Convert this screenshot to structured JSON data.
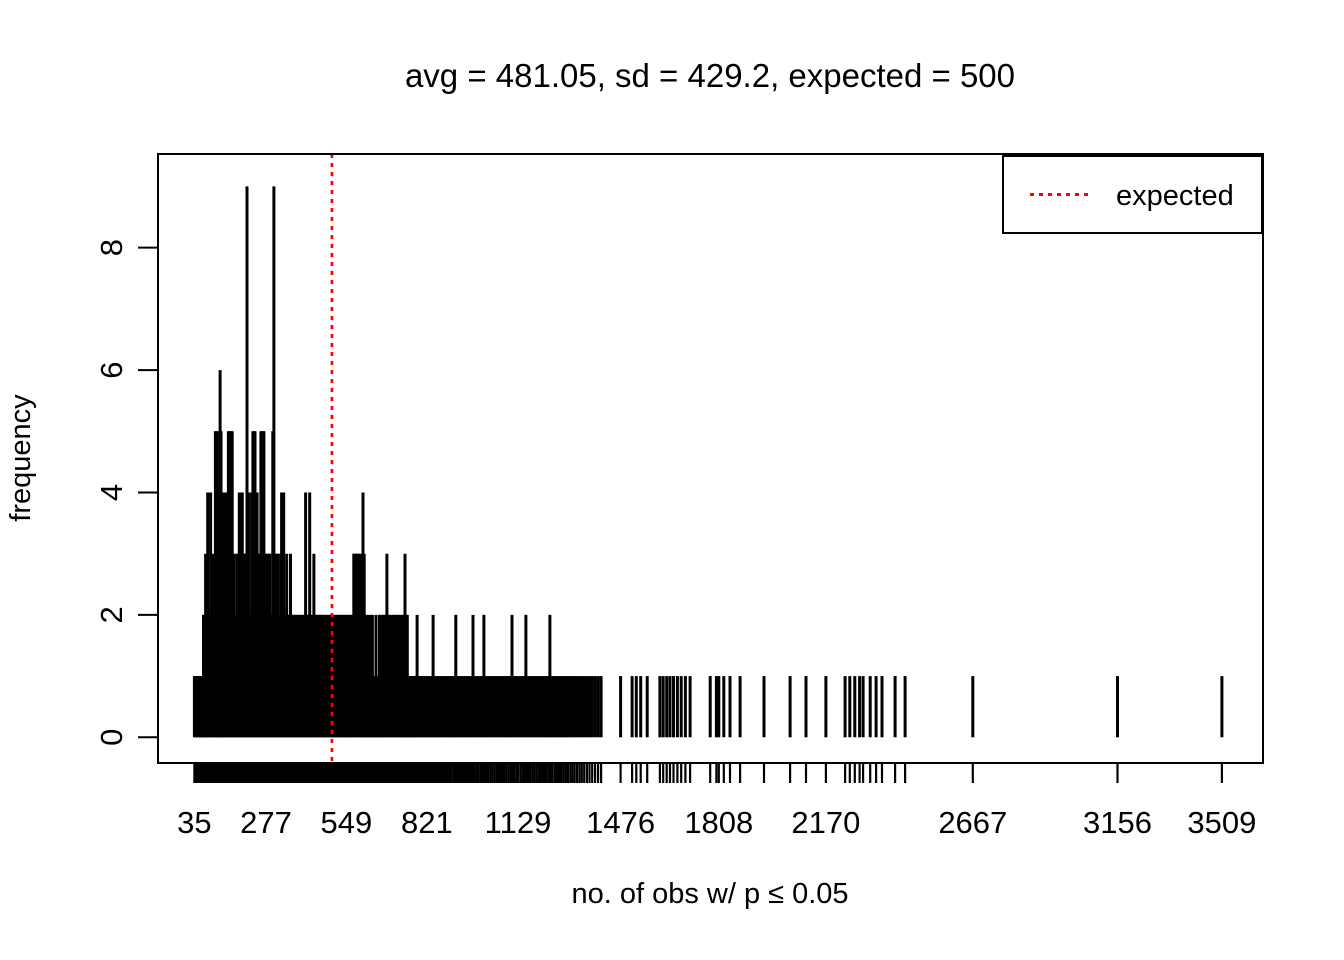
{
  "figure": {
    "background": "#ffffff",
    "stats": {
      "avg": 481.05,
      "sd": 429.2,
      "expected": 500
    }
  },
  "chart_data": {
    "type": "bar",
    "subtype": "frequency-spike-plot",
    "title": "avg = 481.05, sd = 429.2, expected = 500",
    "xlabel": "no. of obs w/ p ≤ 0.05",
    "ylabel": "frequency",
    "bar_color": "#000000",
    "axis_color": "#000000",
    "grid": false,
    "xlim": [
      -88,
      3648
    ],
    "ylim": [
      -0.42,
      9.53
    ],
    "y_ticks": [
      0,
      2,
      4,
      6,
      8
    ],
    "x_tick_labels": [
      35,
      277,
      549,
      821,
      1129,
      1476,
      1808,
      2170,
      2667,
      3156,
      3509
    ],
    "rug_at_every_value": true,
    "expected_line": {
      "value": 500,
      "color": "#ff0000",
      "line_style": "dotted",
      "label": "expected"
    },
    "legend": {
      "position": "top-right",
      "entries": [
        {
          "label": "expected",
          "color": "#ff0000",
          "line_style": "dotted"
        }
      ]
    },
    "points": [
      [
        35,
        1
      ],
      [
        39,
        1
      ],
      [
        43,
        1
      ],
      [
        46,
        1
      ],
      [
        50,
        1
      ],
      [
        53,
        1
      ],
      [
        56,
        1
      ],
      [
        60,
        1
      ],
      [
        63,
        1
      ],
      [
        66,
        2
      ],
      [
        70,
        2
      ],
      [
        73,
        3
      ],
      [
        76,
        2
      ],
      [
        80,
        4
      ],
      [
        83,
        2
      ],
      [
        86,
        2
      ],
      [
        90,
        4
      ],
      [
        93,
        3
      ],
      [
        96,
        2
      ],
      [
        100,
        2
      ],
      [
        103,
        3
      ],
      [
        106,
        5
      ],
      [
        109,
        5
      ],
      [
        113,
        5
      ],
      [
        116,
        2
      ],
      [
        119,
        3
      ],
      [
        122,
        6
      ],
      [
        125,
        5
      ],
      [
        128,
        2
      ],
      [
        131,
        2
      ],
      [
        134,
        4
      ],
      [
        137,
        4
      ],
      [
        141,
        2
      ],
      [
        144,
        4
      ],
      [
        147,
        3
      ],
      [
        150,
        5
      ],
      [
        153,
        5
      ],
      [
        157,
        5
      ],
      [
        160,
        5
      ],
      [
        163,
        5
      ],
      [
        167,
        2
      ],
      [
        170,
        3
      ],
      [
        173,
        2
      ],
      [
        177,
        2
      ],
      [
        180,
        3
      ],
      [
        183,
        3
      ],
      [
        187,
        4
      ],
      [
        190,
        4
      ],
      [
        193,
        4
      ],
      [
        197,
        4
      ],
      [
        200,
        3
      ],
      [
        204,
        3
      ],
      [
        207,
        3
      ],
      [
        210,
        3
      ],
      [
        213,
        9
      ],
      [
        217,
        3
      ],
      [
        220,
        4
      ],
      [
        223,
        2
      ],
      [
        227,
        2
      ],
      [
        230,
        4
      ],
      [
        233,
        5
      ],
      [
        237,
        5
      ],
      [
        240,
        5
      ],
      [
        243,
        4
      ],
      [
        247,
        4
      ],
      [
        250,
        3
      ],
      [
        253,
        2
      ],
      [
        257,
        3
      ],
      [
        260,
        5
      ],
      [
        263,
        5
      ],
      [
        267,
        5
      ],
      [
        270,
        5
      ],
      [
        273,
        3
      ],
      [
        277,
        3
      ],
      [
        280,
        3
      ],
      [
        283,
        2
      ],
      [
        287,
        3
      ],
      [
        290,
        3
      ],
      [
        293,
        2
      ],
      [
        297,
        2
      ],
      [
        300,
        5
      ],
      [
        304,
        9
      ],
      [
        307,
        3
      ],
      [
        310,
        2
      ],
      [
        314,
        3
      ],
      [
        317,
        3
      ],
      [
        320,
        2
      ],
      [
        324,
        2
      ],
      [
        327,
        3
      ],
      [
        330,
        4
      ],
      [
        334,
        4
      ],
      [
        337,
        4
      ],
      [
        340,
        2
      ],
      [
        344,
        2
      ],
      [
        347,
        3
      ],
      [
        350,
        2
      ],
      [
        354,
        2
      ],
      [
        357,
        2
      ],
      [
        360,
        3
      ],
      [
        364,
        2
      ],
      [
        367,
        2
      ],
      [
        371,
        2
      ],
      [
        374,
        2
      ],
      [
        378,
        2
      ],
      [
        381,
        1
      ],
      [
        385,
        2
      ],
      [
        389,
        2
      ],
      [
        392,
        1
      ],
      [
        396,
        2
      ],
      [
        400,
        2
      ],
      [
        403,
        1
      ],
      [
        407,
        2
      ],
      [
        411,
        4
      ],
      [
        414,
        2
      ],
      [
        418,
        2
      ],
      [
        421,
        1
      ],
      [
        425,
        4
      ],
      [
        428,
        2
      ],
      [
        432,
        2
      ],
      [
        436,
        2
      ],
      [
        439,
        3
      ],
      [
        443,
        2
      ],
      [
        447,
        2
      ],
      [
        450,
        1
      ],
      [
        454,
        2
      ],
      [
        458,
        2
      ],
      [
        461,
        2
      ],
      [
        465,
        1
      ],
      [
        469,
        2
      ],
      [
        472,
        2
      ],
      [
        476,
        1
      ],
      [
        480,
        2
      ],
      [
        484,
        2
      ],
      [
        487,
        1
      ],
      [
        491,
        2
      ],
      [
        495,
        2
      ],
      [
        498,
        2
      ],
      [
        502,
        2
      ],
      [
        506,
        2
      ],
      [
        510,
        1
      ],
      [
        513,
        2
      ],
      [
        517,
        2
      ],
      [
        521,
        1
      ],
      [
        525,
        2
      ],
      [
        528,
        2
      ],
      [
        532,
        1
      ],
      [
        536,
        2
      ],
      [
        540,
        2
      ],
      [
        543,
        1
      ],
      [
        549,
        2
      ],
      [
        551,
        2
      ],
      [
        555,
        1
      ],
      [
        558,
        2
      ],
      [
        562,
        2
      ],
      [
        566,
        1
      ],
      [
        570,
        2
      ],
      [
        574,
        3
      ],
      [
        578,
        3
      ],
      [
        582,
        3
      ],
      [
        586,
        3
      ],
      [
        590,
        3
      ],
      [
        594,
        2
      ],
      [
        598,
        3
      ],
      [
        602,
        3
      ],
      [
        605,
        4
      ],
      [
        609,
        3
      ],
      [
        613,
        2
      ],
      [
        617,
        1
      ],
      [
        621,
        2
      ],
      [
        625,
        1
      ],
      [
        629,
        2
      ],
      [
        633,
        1
      ],
      [
        637,
        2
      ],
      [
        641,
        1
      ],
      [
        645,
        1
      ],
      [
        649,
        2
      ],
      [
        653,
        1
      ],
      [
        657,
        1
      ],
      [
        661,
        2
      ],
      [
        665,
        2
      ],
      [
        669,
        1
      ],
      [
        673,
        2
      ],
      [
        677,
        2
      ],
      [
        681,
        2
      ],
      [
        686,
        3
      ],
      [
        690,
        2
      ],
      [
        694,
        2
      ],
      [
        698,
        1
      ],
      [
        702,
        2
      ],
      [
        706,
        2
      ],
      [
        710,
        1
      ],
      [
        714,
        2
      ],
      [
        719,
        2
      ],
      [
        723,
        1
      ],
      [
        727,
        2
      ],
      [
        731,
        2
      ],
      [
        735,
        1
      ],
      [
        739,
        2
      ],
      [
        743,
        2
      ],
      [
        747,
        3
      ],
      [
        751,
        2
      ],
      [
        755,
        2
      ],
      [
        759,
        1
      ],
      [
        763,
        1
      ],
      [
        768,
        1
      ],
      [
        773,
        1
      ],
      [
        778,
        1
      ],
      [
        783,
        1
      ],
      [
        788,
        2
      ],
      [
        793,
        1
      ],
      [
        798,
        1
      ],
      [
        804,
        1
      ],
      [
        809,
        1
      ],
      [
        815,
        1
      ],
      [
        821,
        1
      ],
      [
        827,
        1
      ],
      [
        833,
        1
      ],
      [
        839,
        1
      ],
      [
        842,
        2
      ],
      [
        848,
        1
      ],
      [
        854,
        1
      ],
      [
        860,
        1
      ],
      [
        866,
        1
      ],
      [
        872,
        1
      ],
      [
        879,
        1
      ],
      [
        885,
        1
      ],
      [
        891,
        1
      ],
      [
        897,
        1
      ],
      [
        903,
        1
      ],
      [
        910,
        1
      ],
      [
        916,
        1
      ],
      [
        919,
        2
      ],
      [
        925,
        1
      ],
      [
        931,
        1
      ],
      [
        938,
        1
      ],
      [
        944,
        1
      ],
      [
        950,
        1
      ],
      [
        957,
        1
      ],
      [
        963,
        1
      ],
      [
        970,
        1
      ],
      [
        977,
        2
      ],
      [
        983,
        1
      ],
      [
        990,
        1
      ],
      [
        996,
        1
      ],
      [
        1003,
        1
      ],
      [
        1009,
        1
      ],
      [
        1014,
        2
      ],
      [
        1021,
        1
      ],
      [
        1028,
        1
      ],
      [
        1035,
        1
      ],
      [
        1042,
        1
      ],
      [
        1049,
        1
      ],
      [
        1056,
        1
      ],
      [
        1063,
        1
      ],
      [
        1070,
        1
      ],
      [
        1077,
        1
      ],
      [
        1084,
        1
      ],
      [
        1091,
        1
      ],
      [
        1098,
        1
      ],
      [
        1105,
        1
      ],
      [
        1109,
        2
      ],
      [
        1116,
        1
      ],
      [
        1123,
        1
      ],
      [
        1129,
        1
      ],
      [
        1137,
        1
      ],
      [
        1144,
        1
      ],
      [
        1151,
        1
      ],
      [
        1156,
        2
      ],
      [
        1163,
        1
      ],
      [
        1170,
        1
      ],
      [
        1177,
        1
      ],
      [
        1184,
        1
      ],
      [
        1191,
        1
      ],
      [
        1198,
        1
      ],
      [
        1205,
        1
      ],
      [
        1212,
        1
      ],
      [
        1219,
        1
      ],
      [
        1226,
        1
      ],
      [
        1233,
        1
      ],
      [
        1237,
        2
      ],
      [
        1244,
        1
      ],
      [
        1252,
        1
      ],
      [
        1258,
        1
      ],
      [
        1264,
        1
      ],
      [
        1271,
        1
      ],
      [
        1277,
        1
      ],
      [
        1284,
        1
      ],
      [
        1291,
        1
      ],
      [
        1298,
        1
      ],
      [
        1306,
        1
      ],
      [
        1313,
        1
      ],
      [
        1321,
        1
      ],
      [
        1329,
        1
      ],
      [
        1337,
        1
      ],
      [
        1345,
        1
      ],
      [
        1353,
        1
      ],
      [
        1362,
        1
      ],
      [
        1371,
        1
      ],
      [
        1380,
        1
      ],
      [
        1390,
        1
      ],
      [
        1400,
        1
      ],
      [
        1410,
        1
      ],
      [
        1476,
        1
      ],
      [
        1515,
        1
      ],
      [
        1529,
        1
      ],
      [
        1544,
        1
      ],
      [
        1566,
        1
      ],
      [
        1609,
        1
      ],
      [
        1620,
        1
      ],
      [
        1632,
        1
      ],
      [
        1643,
        1
      ],
      [
        1655,
        1
      ],
      [
        1668,
        1
      ],
      [
        1681,
        1
      ],
      [
        1695,
        1
      ],
      [
        1711,
        1
      ],
      [
        1779,
        1
      ],
      [
        1800,
        1
      ],
      [
        1808,
        1
      ],
      [
        1825,
        1
      ],
      [
        1846,
        1
      ],
      [
        1880,
        1
      ],
      [
        1961,
        1
      ],
      [
        2049,
        1
      ],
      [
        2103,
        1
      ],
      [
        2170,
        1
      ],
      [
        2235,
        1
      ],
      [
        2251,
        1
      ],
      [
        2268,
        1
      ],
      [
        2284,
        1
      ],
      [
        2296,
        1
      ],
      [
        2320,
        1
      ],
      [
        2340,
        1
      ],
      [
        2360,
        1
      ],
      [
        2404,
        1
      ],
      [
        2438,
        1
      ],
      [
        2667,
        1
      ],
      [
        3156,
        1
      ],
      [
        3509,
        1
      ]
    ]
  }
}
